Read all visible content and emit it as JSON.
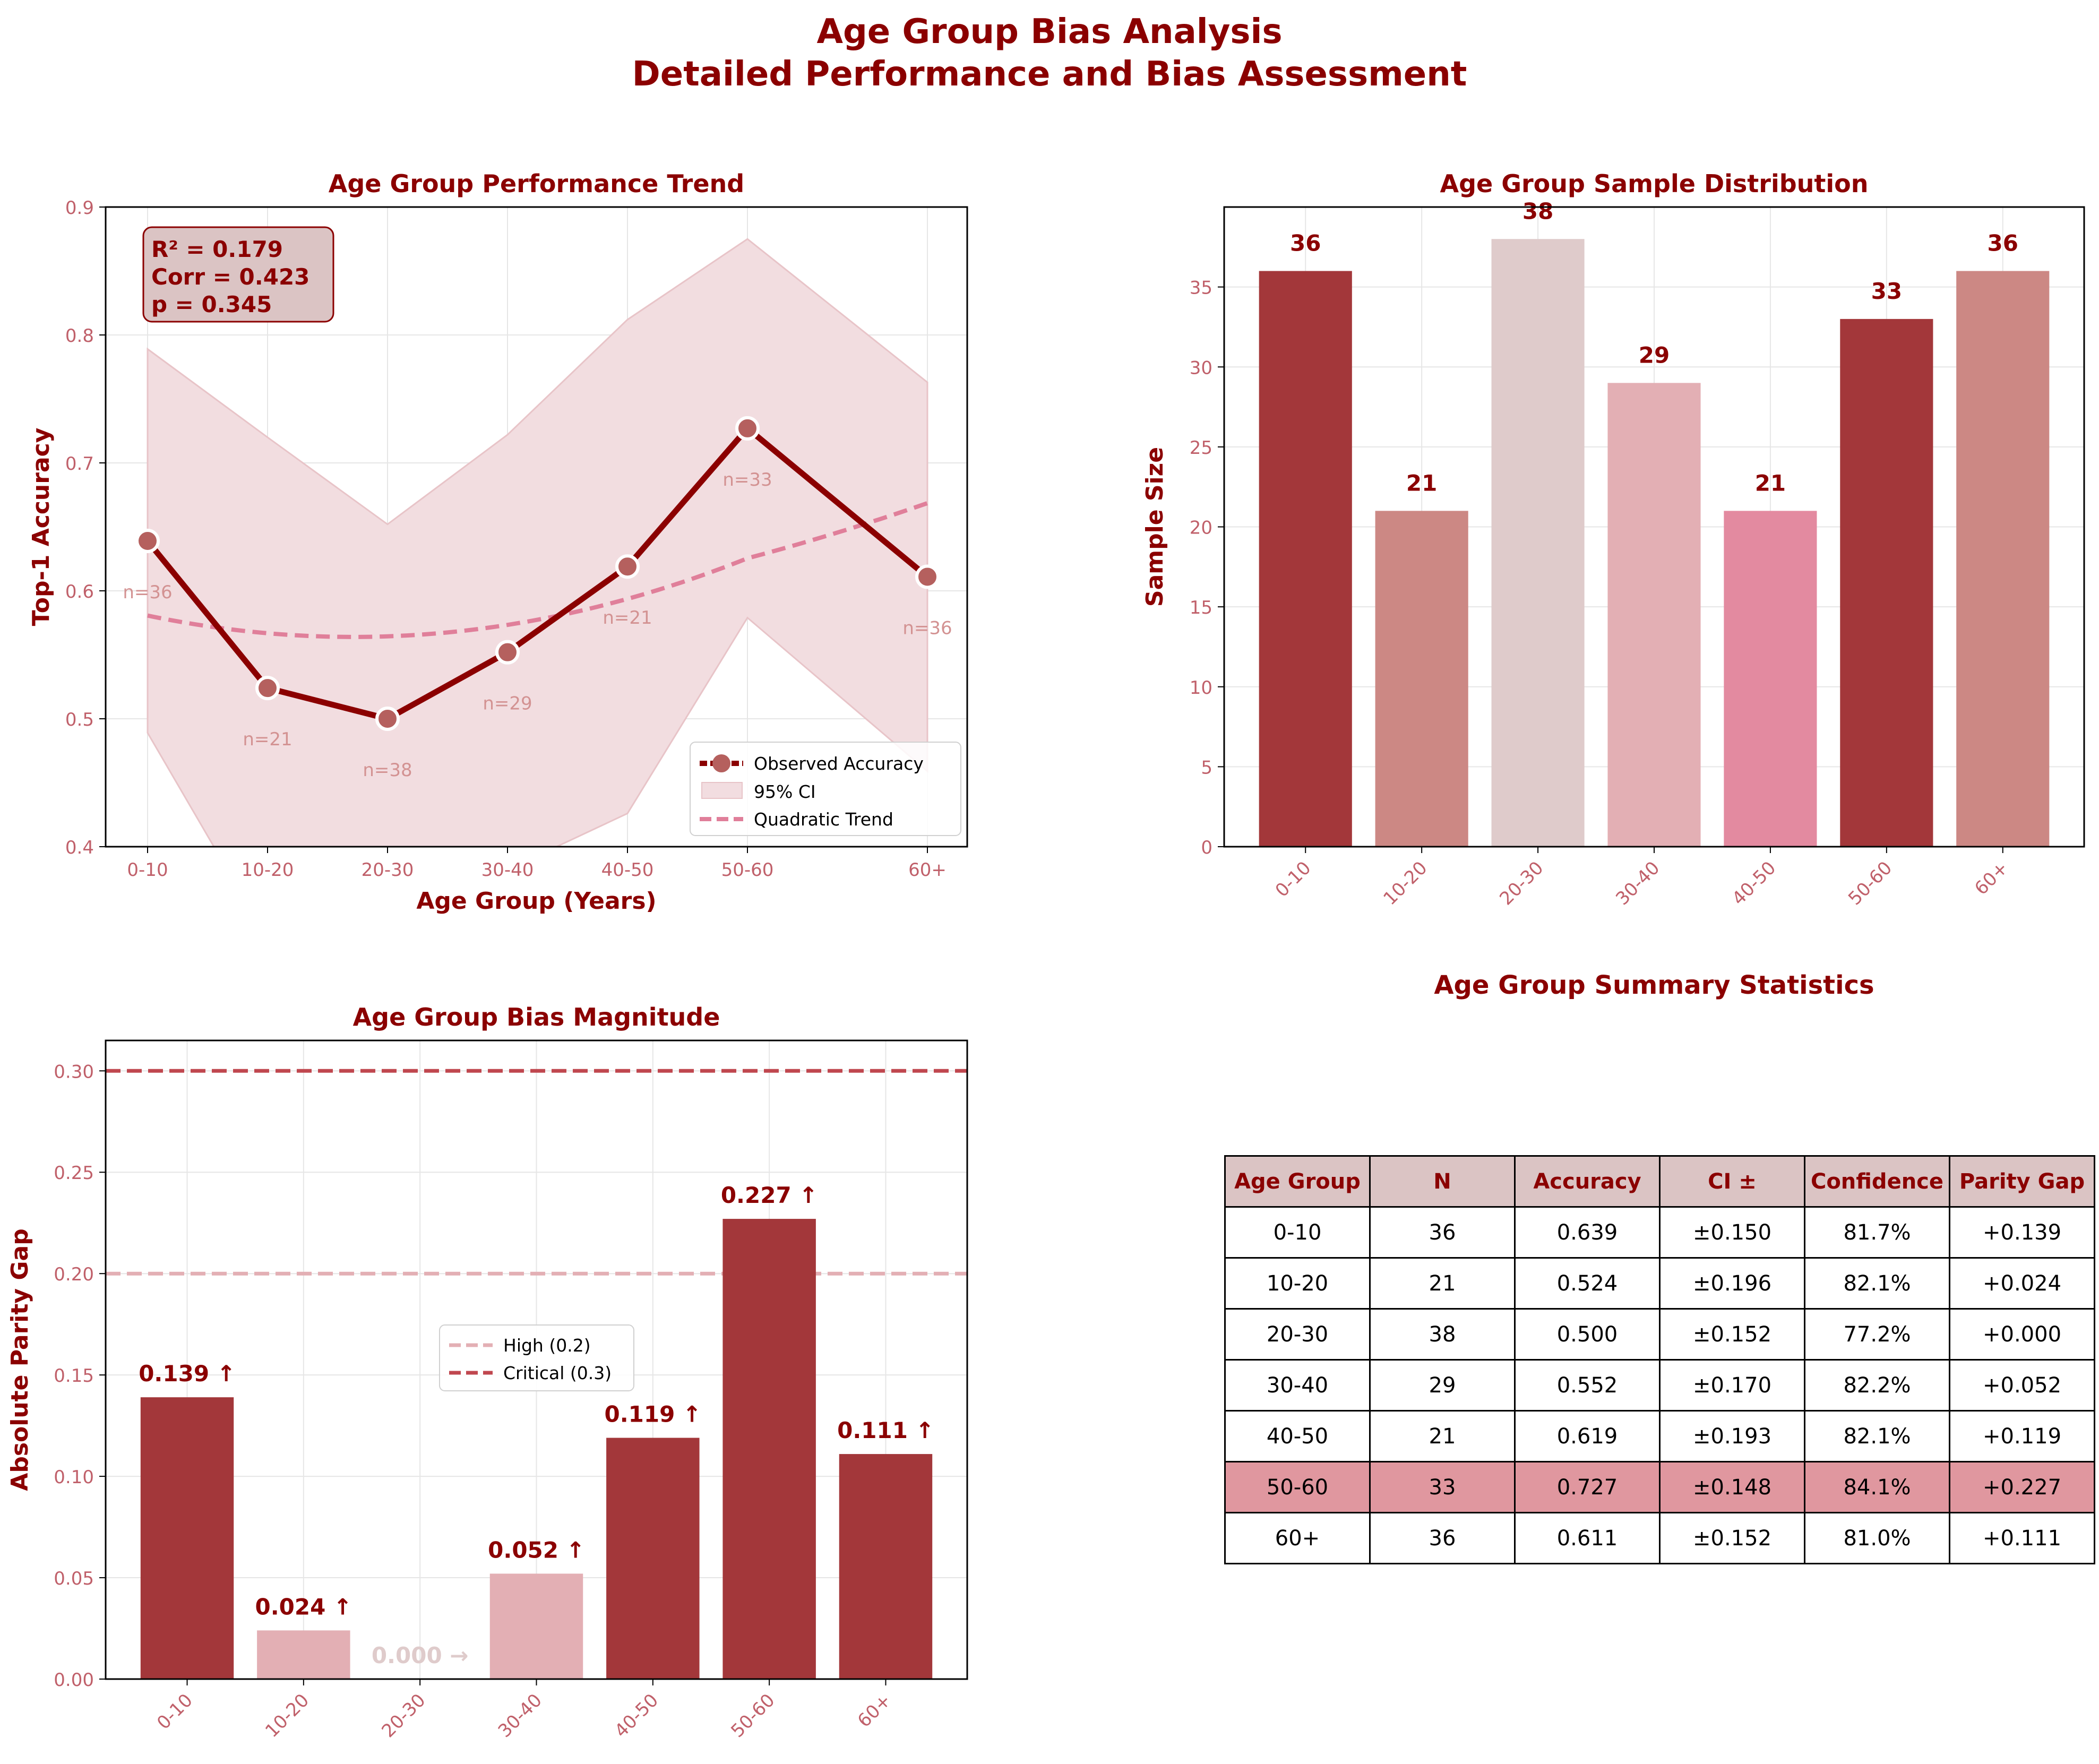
{
  "title": "Age Group Bias Analysis",
  "subtitle": "Detailed Performance and Bias Assessment",
  "colors": {
    "title": "#8b0000",
    "tick": "#c0606a",
    "dark_bar": "#a3373a",
    "mid_bar": "#cc8884",
    "light_bar": "#e3afb4",
    "pale_bar": "#dfcbcb",
    "pink_bar": "#e38aa0",
    "trend": "#e07f9a",
    "ci_fill": "#f2dde0",
    "marker": "#b5605e"
  },
  "chart_data": [
    {
      "id": "performance-trend",
      "type": "line",
      "title": "Age Group Performance Trend",
      "xlabel": "Age Group (Years)",
      "ylabel": "Top-1 Accuracy",
      "ylim": [
        0.4,
        0.9
      ],
      "yticks": [
        "0.4",
        "0.5",
        "0.6",
        "0.7",
        "0.8",
        "0.9"
      ],
      "categories": [
        "0-10",
        "10-20",
        "20-30",
        "30-40",
        "40-50",
        "50-60",
        "60+"
      ],
      "grid": true,
      "legend_position": "lower-right",
      "series": [
        {
          "name": "Observed Accuracy",
          "values": [
            0.639,
            0.524,
            0.5,
            0.552,
            0.619,
            0.727,
            0.611
          ]
        },
        {
          "name": "95% CI",
          "lower": [
            0.489,
            0.328,
            0.348,
            0.382,
            0.426,
            0.579,
            0.459
          ],
          "upper": [
            0.789,
            0.72,
            0.652,
            0.722,
            0.812,
            0.875,
            0.763
          ]
        },
        {
          "name": "Quadratic Trend",
          "values": [
            0.578,
            0.569,
            0.567,
            0.575,
            0.592,
            0.619,
            0.673
          ]
        }
      ],
      "point_labels": [
        "n=36",
        "n=21",
        "n=38",
        "n=29",
        "n=21",
        "n=33",
        "n=36"
      ],
      "stats_box": [
        "R² = 0.179",
        "Corr = 0.423",
        "p = 0.345"
      ]
    },
    {
      "id": "sample-distribution",
      "type": "bar",
      "title": "Age Group Sample Distribution",
      "ylabel": "Sample Size",
      "xlabel": "",
      "ylim": [
        0,
        40
      ],
      "yticks": [
        "0",
        "5",
        "10",
        "15",
        "20",
        "25",
        "30",
        "35"
      ],
      "categories": [
        "0-10",
        "10-20",
        "20-30",
        "30-40",
        "40-50",
        "50-60",
        "60+"
      ],
      "values": [
        36,
        21,
        38,
        29,
        21,
        33,
        36
      ],
      "value_labels": [
        "36",
        "21",
        "38",
        "29",
        "21",
        "33",
        "36"
      ],
      "bar_colors": [
        "#a3373a",
        "#cc8884",
        "#dfcbcb",
        "#e3afb4",
        "#e38aa0",
        "#a3373a",
        "#cc8884"
      ],
      "grid": true
    },
    {
      "id": "bias-magnitude",
      "type": "bar",
      "title": "Age Group Bias Magnitude",
      "ylabel": "Absolute Parity Gap",
      "xlabel": "",
      "ylim": [
        0,
        0.315
      ],
      "yticks": [
        "0.00",
        "0.05",
        "0.10",
        "0.15",
        "0.20",
        "0.25",
        "0.30"
      ],
      "categories": [
        "0-10",
        "10-20",
        "20-30",
        "30-40",
        "40-50",
        "50-60",
        "60+"
      ],
      "values": [
        0.139,
        0.024,
        0.0,
        0.052,
        0.119,
        0.227,
        0.111
      ],
      "value_labels": [
        "0.139 ↑",
        "0.024 ↑",
        "0.000 →",
        "0.052 ↑",
        "0.119 ↑",
        "0.227 ↑",
        "0.111 ↑"
      ],
      "bar_colors": [
        "#a3373a",
        "#e3afb4",
        "#dfcbcb",
        "#e3afb4",
        "#a3373a",
        "#a3373a",
        "#a3373a"
      ],
      "label_colors": [
        "#8b0000",
        "#8b0000",
        "#dfcbcb",
        "#8b0000",
        "#8b0000",
        "#8b0000",
        "#8b0000"
      ],
      "thresholds": [
        {
          "name": "High (0.2)",
          "value": 0.2,
          "color": "#e3afb4"
        },
        {
          "name": "Critical (0.3)",
          "value": 0.3,
          "color": "#c0474f"
        }
      ],
      "legend_position": "center",
      "grid": true
    }
  ],
  "table": {
    "title": "Age Group Summary Statistics",
    "headers": [
      "Age Group",
      "N",
      "Accuracy",
      "CI ±",
      "Confidence",
      "Parity Gap"
    ],
    "rows": [
      [
        "0-10",
        "36",
        "0.639",
        "±0.150",
        "81.7%",
        "+0.139"
      ],
      [
        "10-20",
        "21",
        "0.524",
        "±0.196",
        "82.1%",
        "+0.024"
      ],
      [
        "20-30",
        "38",
        "0.500",
        "±0.152",
        "77.2%",
        "+0.000"
      ],
      [
        "30-40",
        "29",
        "0.552",
        "±0.170",
        "82.2%",
        "+0.052"
      ],
      [
        "40-50",
        "21",
        "0.619",
        "±0.193",
        "82.1%",
        "+0.119"
      ],
      [
        "50-60",
        "33",
        "0.727",
        "±0.148",
        "84.1%",
        "+0.227"
      ],
      [
        "60+",
        "36",
        "0.611",
        "±0.152",
        "81.0%",
        "+0.111"
      ]
    ],
    "highlight_row": "50-60"
  }
}
